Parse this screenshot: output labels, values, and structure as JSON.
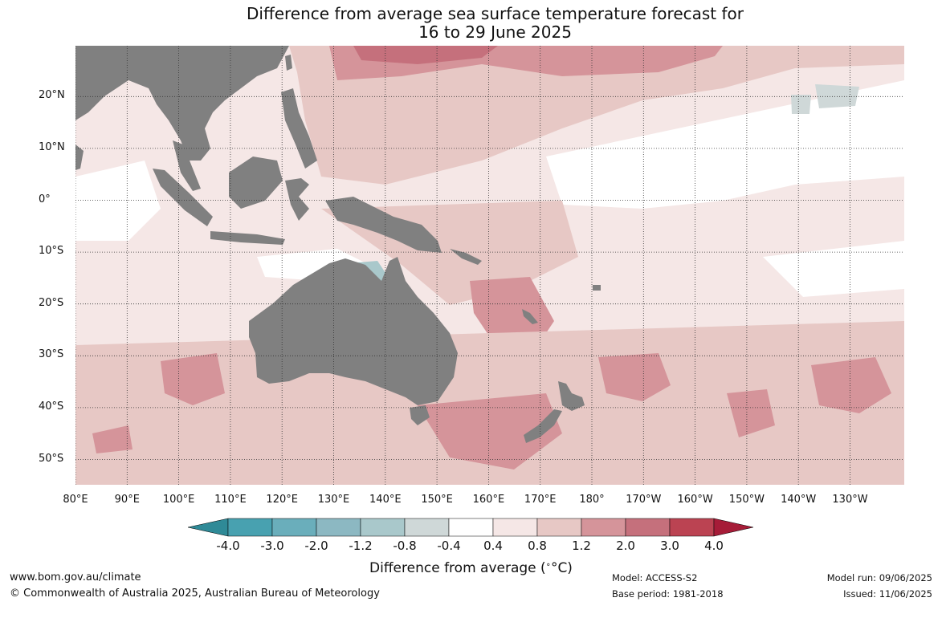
{
  "title_line1": "Difference from average sea surface temperature forecast for",
  "title_line2": "16 to 29 June 2025",
  "lat_labels": [
    "20°N",
    "10°N",
    "0°",
    "10°S",
    "20°S",
    "30°S",
    "40°S",
    "50°S"
  ],
  "lon_labels": [
    "80°E",
    "90°E",
    "100°E",
    "110°E",
    "120°E",
    "130°E",
    "140°E",
    "150°E",
    "160°E",
    "170°E",
    "180°",
    "170°W",
    "160°W",
    "150°W",
    "140°W",
    "130°W"
  ],
  "colorbar": {
    "ticks": [
      "-4.0",
      "-3.0",
      "-2.0",
      "-1.2",
      "-0.8",
      "-0.4",
      "0.4",
      "0.8",
      "1.2",
      "2.0",
      "3.0",
      "4.0"
    ],
    "colors": [
      "#2f8a97",
      "#48a1b0",
      "#6aaebb",
      "#8cb8c2",
      "#a9c8cb",
      "#cfd8d8",
      "#ffffff",
      "#f5e7e6",
      "#e7c8c5",
      "#d5949a",
      "#c5707c",
      "#bb4352",
      "#a61c38"
    ],
    "title": "Difference from average (",
    "title_unit": "°C)"
  },
  "footer": {
    "url": "www.bom.gov.au/climate",
    "copyright": "© Commonwealth of Australia 2025, Australian Bureau of Meteorology",
    "model": "Model: ACCESS-S2",
    "base_period": "Base period: 1981-2018",
    "model_run": "Model run: 09/06/2025",
    "issued": "Issued: 11/06/2025"
  },
  "map_colors": {
    "land": "#808080",
    "ocean_base": "#f5e7e6",
    "grid": "#333333"
  }
}
